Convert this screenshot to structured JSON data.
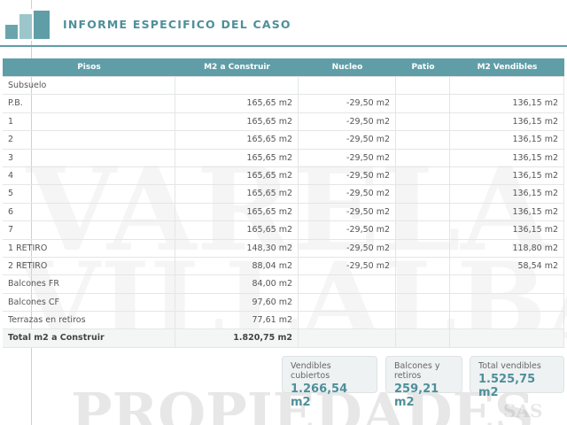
{
  "header": {
    "title": "INFORME ESPECIFICO DEL CASO"
  },
  "watermark": [
    "VARELA",
    "VILLALBA",
    "PROPIEDADES",
    "SAS"
  ],
  "table": {
    "columns": [
      "Pisos",
      "M2 a Construir",
      "Nucleo",
      "Patio",
      "M2 Vendibles"
    ],
    "rows": [
      {
        "piso": "Subsuelo"
      },
      {
        "piso": "P.B.",
        "m2": "165,65 m2",
        "nucleo": "-29,50 m2",
        "vendibles": "136,15 m2"
      },
      {
        "piso": "1",
        "m2": "165,65 m2",
        "nucleo": "-29,50 m2",
        "vendibles": "136,15 m2"
      },
      {
        "piso": "2",
        "m2": "165,65 m2",
        "nucleo": "-29,50 m2",
        "vendibles": "136,15 m2"
      },
      {
        "piso": "3",
        "m2": "165,65 m2",
        "nucleo": "-29,50 m2",
        "vendibles": "136,15 m2"
      },
      {
        "piso": "4",
        "m2": "165,65 m2",
        "nucleo": "-29,50 m2",
        "vendibles": "136,15 m2"
      },
      {
        "piso": "5",
        "m2": "165,65 m2",
        "nucleo": "-29,50 m2",
        "vendibles": "136,15 m2"
      },
      {
        "piso": "6",
        "m2": "165,65 m2",
        "nucleo": "-29,50 m2",
        "vendibles": "136,15 m2"
      },
      {
        "piso": "7",
        "m2": "165,65 m2",
        "nucleo": "-29,50 m2",
        "vendibles": "136,15 m2"
      },
      {
        "piso": "1 RETIRO",
        "m2": "148,30 m2",
        "nucleo": "-29,50 m2",
        "vendibles": "118,80 m2"
      },
      {
        "piso": "2 RETIRO",
        "m2": "88,04 m2",
        "nucleo": "-29,50 m2",
        "vendibles": "58,54 m2"
      },
      {
        "piso": "Balcones FR",
        "m2": "84,00 m2"
      },
      {
        "piso": "Balcones CF",
        "m2": "97,60 m2"
      },
      {
        "piso": "Terrazas en retiros",
        "m2": "77,61 m2"
      },
      {
        "piso": "Total m2 a Construir",
        "m2": "1.820,75 m2"
      }
    ]
  },
  "summary": [
    {
      "label": "Vendibles cubiertos",
      "value": "1.266,54 m2"
    },
    {
      "label": "Balcones y retiros",
      "value": "259,21 m2"
    },
    {
      "label": "Total vendibles",
      "value": "1.525,75 m2"
    }
  ]
}
